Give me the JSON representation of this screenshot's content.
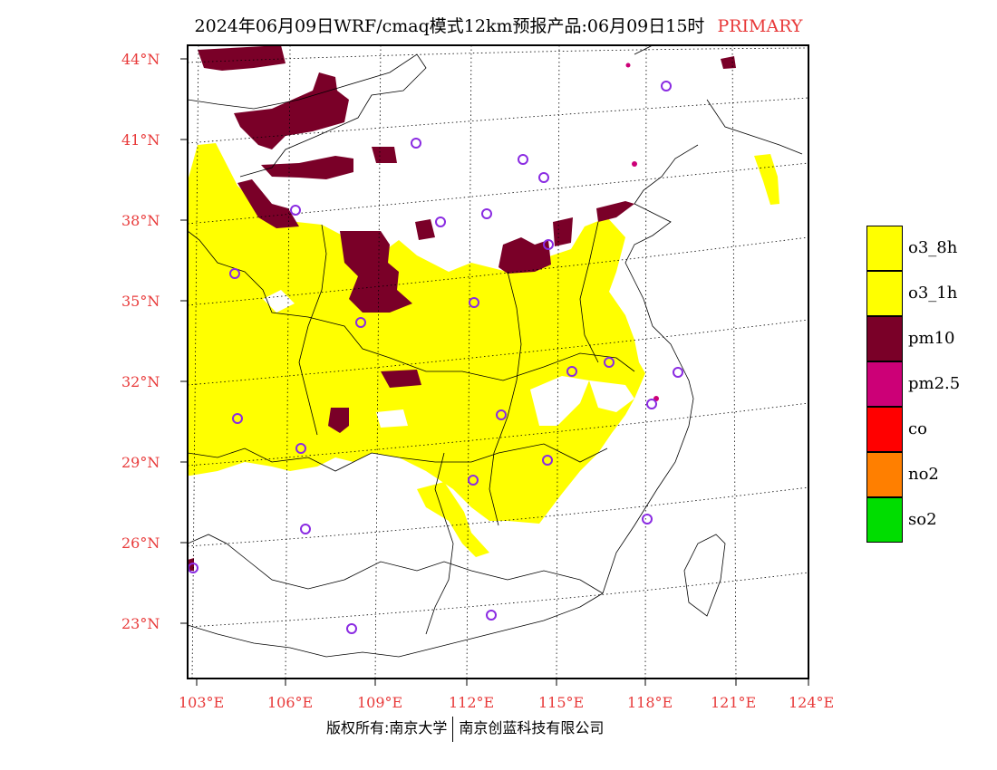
{
  "title": {
    "main": "2024年06月09日WRF/cmaq模式12km预报产品:06月09日15时",
    "tag": "PRIMARY"
  },
  "footer": {
    "left": "版权所有:南京大学",
    "right": "南京创蓝科技有限公司"
  },
  "axes": {
    "lat_labels": [
      "44°N",
      "41°N",
      "38°N",
      "35°N",
      "32°N",
      "29°N",
      "26°N",
      "23°N"
    ],
    "lon_labels": [
      "103°E",
      "106°E",
      "109°E",
      "112°E",
      "115°E",
      "118°E",
      "121°E",
      "124°E"
    ]
  },
  "legend": [
    {
      "label": "o3_8h",
      "color": "#ffff00"
    },
    {
      "label": "o3_1h",
      "color": "#ffff00"
    },
    {
      "label": "pm10",
      "color": "#7a0028"
    },
    {
      "label": "pm2.5",
      "color": "#cc0077"
    },
    {
      "label": "co",
      "color": "#ff0000"
    },
    {
      "label": "no2",
      "color": "#ff7f00"
    },
    {
      "label": "so2",
      "color": "#00dd00"
    }
  ],
  "colors": {
    "o3": "#ffff00",
    "pm10": "#7a0028",
    "pm25": "#cc0077",
    "marker": "#8a2be2",
    "label": "#e83a3a"
  }
}
